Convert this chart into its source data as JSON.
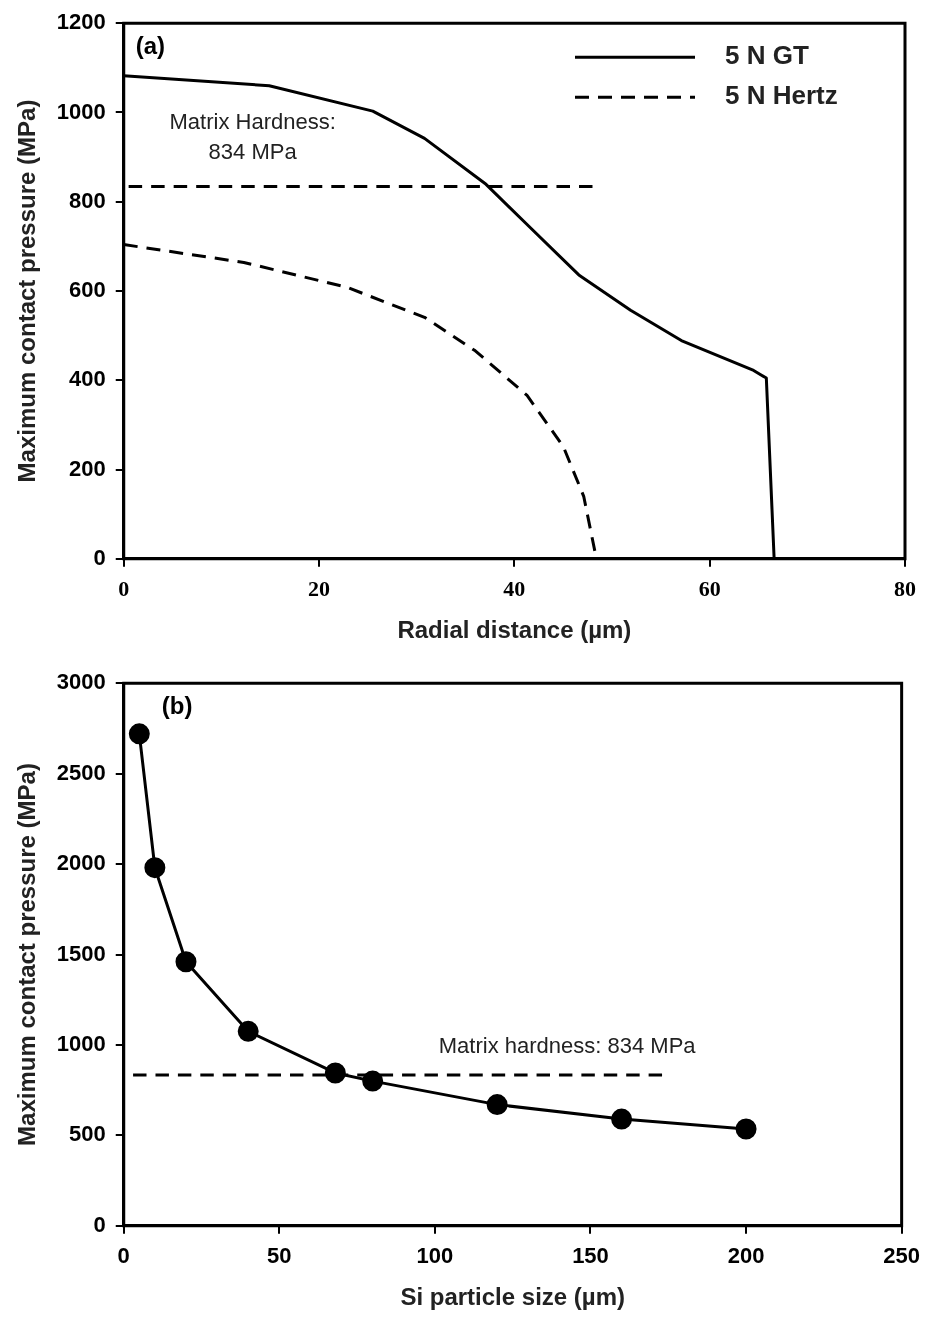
{
  "chart_data": [
    {
      "type": "line",
      "title": "(a)",
      "xlabel": "Radial distance (µm)",
      "ylabel": "Maximum contact pressure (MPa)",
      "xlim": [
        0,
        80
      ],
      "xticks": [
        0,
        20,
        40,
        60,
        80
      ],
      "ylim": [
        0,
        1200
      ],
      "yticks": [
        0,
        200,
        400,
        600,
        800,
        1000,
        1200
      ],
      "grid": false,
      "legend": "top right",
      "marker": "none",
      "series": [
        {
          "name": "5 N GT",
          "color": "#000000",
          "line_style": "solid",
          "x": [
            0,
            14.9,
            25.5,
            30.8,
            37.1,
            41.3,
            46.6,
            51.9,
            57.1,
            64.5,
            65.8,
            66.6
          ],
          "values": [
            1082,
            1060,
            1003,
            942,
            839,
            749,
            636,
            557,
            489,
            422,
            405,
            0
          ]
        },
        {
          "name": "5 N Hertz",
          "color": "#000000",
          "line_style": "dashed",
          "x": [
            0,
            12.3,
            22.9,
            30.8,
            36,
            41.3,
            45,
            47.1,
            48.4
          ],
          "values": [
            704,
            664,
            608,
            541,
            466,
            366,
            252,
            140,
            0
          ]
        },
        {
          "color": "#000000",
          "line_style": "dashed",
          "x": [
            0.5,
            48
          ],
          "values": [
            834,
            834
          ]
        }
      ],
      "annotations": [
        "Matrix Hardness:\n834 MPa"
      ]
    },
    {
      "type": "line",
      "title": "(b)",
      "xlabel": "Si particle size (µm)",
      "ylabel": "Maximum contact pressure (MPa)",
      "xlim": [
        0,
        250
      ],
      "xticks": [
        0,
        50,
        100,
        150,
        200,
        250
      ],
      "ylim": [
        0,
        3000
      ],
      "yticks": [
        0,
        500,
        1000,
        1500,
        2000,
        2500,
        3000
      ],
      "grid": false,
      "series": [
        {
          "color": "#000000",
          "line_style": "solid",
          "marker": "circle",
          "x": [
            5,
            10,
            20,
            40,
            68,
            80,
            120,
            160,
            200
          ],
          "values": [
            2720,
            1980,
            1460,
            1075,
            845,
            800,
            670,
            590,
            535
          ]
        },
        {
          "color": "#000000",
          "line_style": "dashed",
          "marker": "none",
          "x": [
            3,
            173
          ],
          "values": [
            834,
            834
          ]
        }
      ],
      "annotations": [
        "Matrix hardness: 834 MPa"
      ]
    }
  ]
}
